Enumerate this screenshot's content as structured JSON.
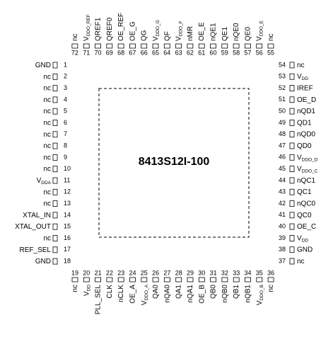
{
  "chip": {
    "name": "8413S12I-100"
  },
  "pins": {
    "left": [
      {
        "number": 1,
        "label": "GND"
      },
      {
        "number": 2,
        "label": "nc"
      },
      {
        "number": 3,
        "label": "nc"
      },
      {
        "number": 4,
        "label": "nc"
      },
      {
        "number": 5,
        "label": "nc"
      },
      {
        "number": 6,
        "label": "nc"
      },
      {
        "number": 7,
        "label": "nc"
      },
      {
        "number": 8,
        "label": "nc"
      },
      {
        "number": 9,
        "label": "nc"
      },
      {
        "number": 10,
        "label": "nc"
      },
      {
        "number": 11,
        "label": "V",
        "sub": "DDA"
      },
      {
        "number": 12,
        "label": "nc"
      },
      {
        "number": 13,
        "label": "nc"
      },
      {
        "number": 14,
        "label": "XTAL_IN"
      },
      {
        "number": 15,
        "label": "XTAL_OUT"
      },
      {
        "number": 16,
        "label": "nc"
      },
      {
        "number": 17,
        "label": "REF_SEL"
      },
      {
        "number": 18,
        "label": "GND"
      }
    ],
    "bottom": [
      {
        "number": 19,
        "label": "nc"
      },
      {
        "number": 20,
        "label": "V",
        "sub": "DD"
      },
      {
        "number": 21,
        "label": "PLL_SEL"
      },
      {
        "number": 22,
        "label": "CLK"
      },
      {
        "number": 23,
        "label": "nCLK"
      },
      {
        "number": 24,
        "label": "OE_A"
      },
      {
        "number": 25,
        "label": "V",
        "sub": "DDO_A"
      },
      {
        "number": 26,
        "label": "QA0"
      },
      {
        "number": 27,
        "label": "nQA0"
      },
      {
        "number": 28,
        "label": "QA1"
      },
      {
        "number": 29,
        "label": "nQA1"
      },
      {
        "number": 30,
        "label": "OE_B"
      },
      {
        "number": 31,
        "label": "QB0"
      },
      {
        "number": 32,
        "label": "nQB0"
      },
      {
        "number": 33,
        "label": "QB1"
      },
      {
        "number": 34,
        "label": "nQB1"
      },
      {
        "number": 35,
        "label": "V",
        "sub": "DDO_B"
      },
      {
        "number": 36,
        "label": "nc"
      }
    ],
    "right": [
      {
        "number": 37,
        "label": "nc"
      },
      {
        "number": 38,
        "label": "GND"
      },
      {
        "number": 39,
        "label": "V",
        "sub": "DD"
      },
      {
        "number": 40,
        "label": "OE_C"
      },
      {
        "number": 41,
        "label": "QC0"
      },
      {
        "number": 42,
        "label": "nQC0"
      },
      {
        "number": 43,
        "label": "QC1"
      },
      {
        "number": 44,
        "label": "nQC1"
      },
      {
        "number": 45,
        "label": "V",
        "sub": "DDO_C"
      },
      {
        "number": 46,
        "label": "V",
        "sub": "DDO_D"
      },
      {
        "number": 47,
        "label": "QD0"
      },
      {
        "number": 48,
        "label": "nQD0"
      },
      {
        "number": 49,
        "label": "QD1"
      },
      {
        "number": 50,
        "label": "nQD1"
      },
      {
        "number": 51,
        "label": "OE_D"
      },
      {
        "number": 52,
        "label": "IREF"
      },
      {
        "number": 53,
        "label": "V",
        "sub": "DD"
      },
      {
        "number": 54,
        "label": "nc"
      }
    ],
    "top": [
      {
        "number": 55,
        "label": "nc"
      },
      {
        "number": 56,
        "label": "V",
        "sub": "DDO_E"
      },
      {
        "number": 57,
        "label": "QE0"
      },
      {
        "number": 58,
        "label": "nQE0"
      },
      {
        "number": 59,
        "label": "QE1"
      },
      {
        "number": 60,
        "label": "nQE1"
      },
      {
        "number": 61,
        "label": "OE_E"
      },
      {
        "number": 62,
        "label": "nMR"
      },
      {
        "number": 63,
        "label": "V",
        "sub": "DDO_F"
      },
      {
        "number": 64,
        "label": "QF"
      },
      {
        "number": 65,
        "label": "V",
        "sub": "DDO_G"
      },
      {
        "number": 66,
        "label": "QG"
      },
      {
        "number": 67,
        "label": "OE_G"
      },
      {
        "number": 68,
        "label": "OE_REF"
      },
      {
        "number": 69,
        "label": "QREF0"
      },
      {
        "number": 70,
        "label": "QREF1"
      },
      {
        "number": 71,
        "label": "V",
        "sub": "DDO_REF"
      },
      {
        "number": 72,
        "label": "nc"
      }
    ]
  }
}
